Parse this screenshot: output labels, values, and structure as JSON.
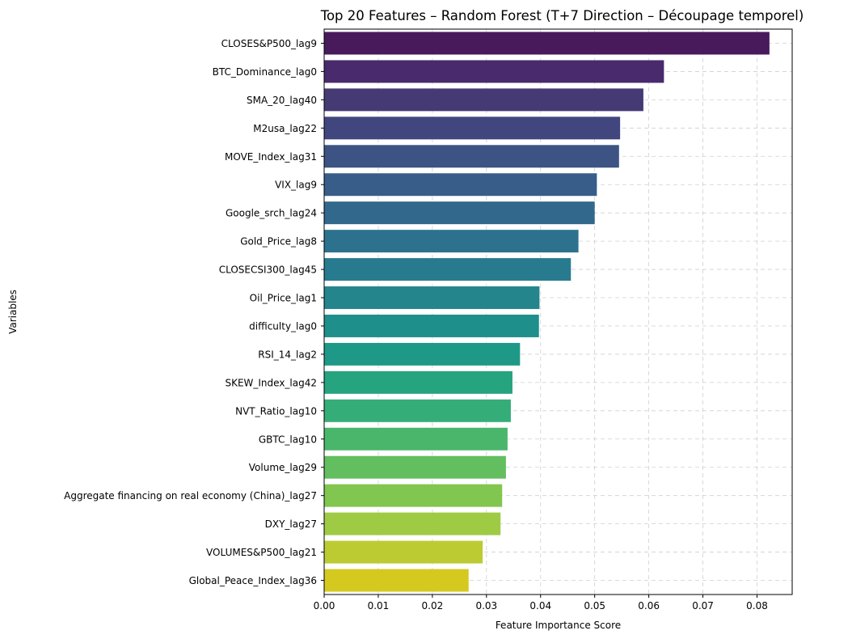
{
  "chart_data": {
    "type": "bar",
    "orientation": "horizontal",
    "title": "Top 20 Features – Random Forest (T+7 Direction – Découpage temporel)",
    "xlabel": "Feature Importance Score",
    "ylabel": "Variables",
    "xlim": [
      0,
      0.0865
    ],
    "xticks": [
      "0.00",
      "0.01",
      "0.02",
      "0.03",
      "0.04",
      "0.05",
      "0.06",
      "0.07",
      "0.08"
    ],
    "grid": true,
    "categories": [
      "CLOSES&P500_lag9",
      "BTC_Dominance_lag0",
      "SMA_20_lag40",
      "M2usa_lag22",
      "MOVE_Index_lag31",
      "VIX_lag9",
      "Google_srch_lag24",
      "Gold_Price_lag8",
      "CLOSECSI300_lag45",
      "Oil_Price_lag1",
      "difficulty_lag0",
      "RSI_14_lag2",
      "SKEW_Index_lag42",
      "NVT_Ratio_lag10",
      "GBTC_lag10",
      "Volume_lag29",
      "Aggregate financing on real economy (China)_lag27",
      "DXY_lag27",
      "VOLUMES&P500_lag21",
      "Global_Peace_Index_lag36"
    ],
    "values": [
      0.0823,
      0.0628,
      0.059,
      0.0547,
      0.0545,
      0.0504,
      0.05,
      0.047,
      0.0456,
      0.0398,
      0.0397,
      0.0362,
      0.0348,
      0.0345,
      0.0339,
      0.0336,
      0.0329,
      0.0326,
      0.0293,
      0.0267
    ],
    "colors": [
      "#481a5c",
      "#482a6d",
      "#463a75",
      "#41467e",
      "#3c5384",
      "#375d88",
      "#32688b",
      "#2c728e",
      "#287b8e",
      "#24858d",
      "#1f8f8b",
      "#1f9987",
      "#26a37f",
      "#35ad78",
      "#4ab66c",
      "#63be5f",
      "#81c64f",
      "#9fcb44",
      "#bccb32",
      "#d5c91f"
    ]
  }
}
